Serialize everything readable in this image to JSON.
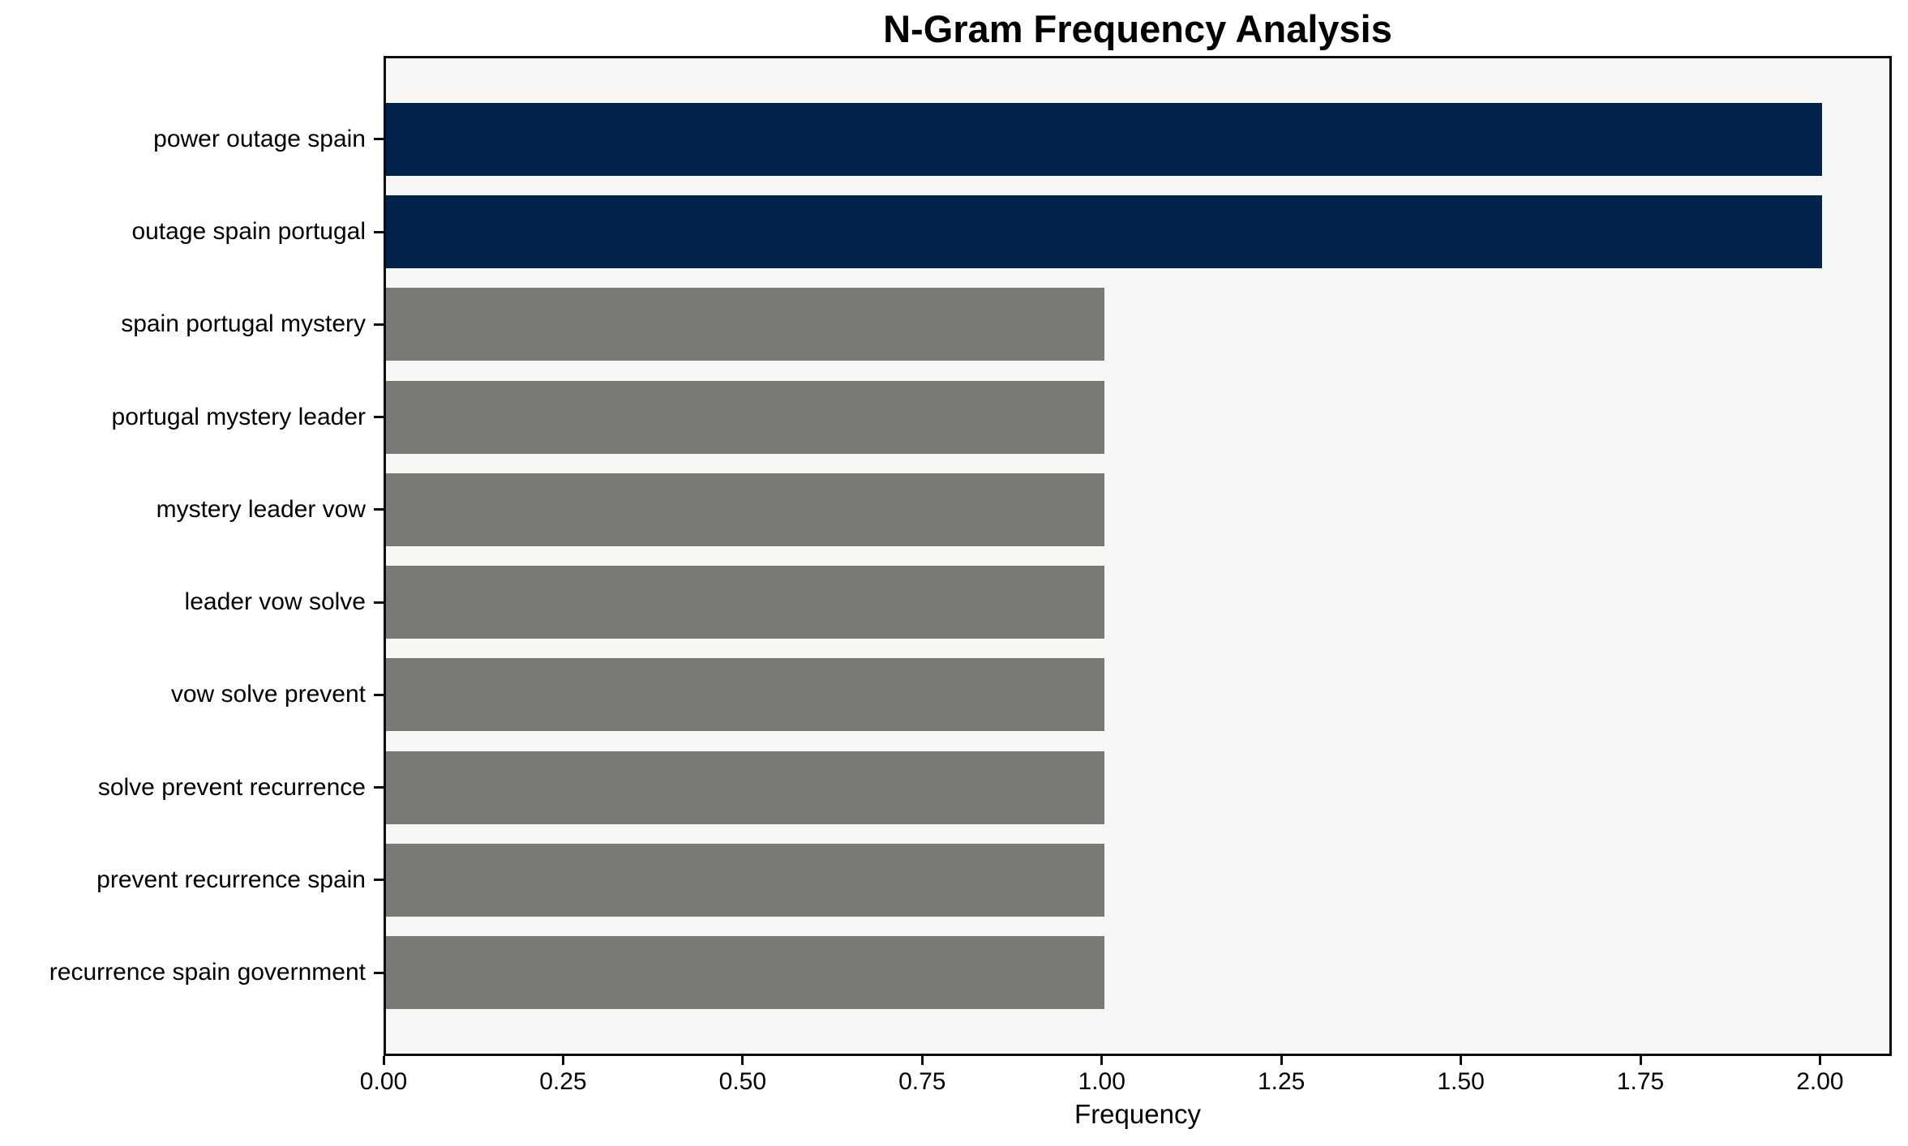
{
  "chart_data": {
    "type": "bar",
    "orientation": "horizontal",
    "title": "N-Gram Frequency Analysis",
    "xlabel": "Frequency",
    "ylabel": "",
    "categories": [
      "power outage spain",
      "outage spain portugal",
      "spain portugal mystery",
      "portugal mystery leader",
      "mystery leader vow",
      "leader vow solve",
      "vow solve prevent",
      "solve prevent recurrence",
      "prevent recurrence spain",
      "recurrence spain government"
    ],
    "values": [
      2,
      2,
      1,
      1,
      1,
      1,
      1,
      1,
      1,
      1
    ],
    "bar_colors": [
      "#01234c",
      "#01234c",
      "#7a7a75",
      "#7a7a75",
      "#7a7a75",
      "#7a7a75",
      "#7a7a75",
      "#7a7a75",
      "#7a7a75",
      "#7a7a75"
    ],
    "x_ticks": [
      {
        "value": 0.0,
        "label": "0.00"
      },
      {
        "value": 0.25,
        "label": "0.25"
      },
      {
        "value": 0.5,
        "label": "0.50"
      },
      {
        "value": 0.75,
        "label": "0.75"
      },
      {
        "value": 1.0,
        "label": "1.00"
      },
      {
        "value": 1.25,
        "label": "1.25"
      },
      {
        "value": 1.5,
        "label": "1.50"
      },
      {
        "value": 1.75,
        "label": "1.75"
      },
      {
        "value": 2.0,
        "label": "2.00"
      }
    ],
    "xlim": [
      0,
      2.1
    ],
    "grid": false,
    "legend_position": "none",
    "colors": {
      "highlight_bar": "#01234c",
      "default_bar": "#7a7a75",
      "plot_background": "#f7f7f6",
      "figure_background": "#ffffff",
      "spine": "#0a0a0a",
      "text": "#000000"
    }
  }
}
